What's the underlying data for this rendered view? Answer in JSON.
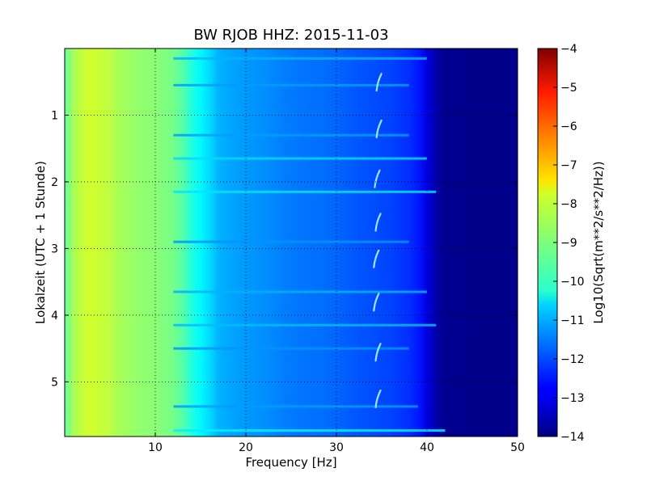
{
  "chart_data": {
    "type": "heatmap",
    "title": "BW RJOB HHZ: 2015-11-03",
    "xlabel": "Frequency [Hz]",
    "ylabel": "Lokalzeit (UTC + 1 Stunde)",
    "xlim": [
      0,
      50
    ],
    "ylim": [
      0,
      5.82
    ],
    "y_inverted": true,
    "grid": true,
    "x_ticks": [
      10,
      20,
      30,
      40,
      50
    ],
    "y_ticks": [
      1,
      2,
      3,
      4,
      5
    ],
    "colormap": "jet",
    "colorbar": {
      "label": "Log10(Sqrt(m**2/s**2/Hz))",
      "range": [
        -14,
        -4
      ],
      "ticks": [
        -4,
        -5,
        -6,
        -7,
        -8,
        -9,
        -10,
        -11,
        -12,
        -13,
        -14
      ]
    },
    "spectrum_profile": {
      "frequency_hz": [
        0,
        1,
        2,
        3,
        4,
        5,
        6,
        8,
        10,
        12,
        13,
        14,
        15,
        16,
        17,
        18,
        20,
        22,
        24,
        26,
        28,
        30,
        32,
        34,
        36,
        38,
        39,
        40,
        41,
        42,
        45,
        50
      ],
      "log10_value": [
        -9.3,
        -8.6,
        -8.3,
        -8.2,
        -8.3,
        -8.4,
        -8.6,
        -8.8,
        -8.9,
        -9.1,
        -9.4,
        -9.9,
        -10.3,
        -10.6,
        -11.0,
        -11.1,
        -11.25,
        -11.35,
        -11.5,
        -11.6,
        -11.65,
        -11.75,
        -11.9,
        -12.0,
        -12.1,
        -12.3,
        -12.5,
        -13.0,
        -13.6,
        -13.85,
        -13.9,
        -13.9
      ]
    },
    "horizontal_bands": [
      {
        "time_h": 0.15,
        "fmax_hz": 40,
        "log10_value": -11.0
      },
      {
        "time_h": 0.55,
        "fmax_hz": 38,
        "log10_value": -11.2
      },
      {
        "time_h": 1.3,
        "fmax_hz": 38,
        "log10_value": -11.2
      },
      {
        "time_h": 1.65,
        "fmax_hz": 40,
        "log10_value": -10.6
      },
      {
        "time_h": 2.15,
        "fmax_hz": 41,
        "log10_value": -10.5
      },
      {
        "time_h": 2.9,
        "fmax_hz": 38,
        "log10_value": -11.3
      },
      {
        "time_h": 3.65,
        "fmax_hz": 40,
        "log10_value": -11.0
      },
      {
        "time_h": 4.15,
        "fmax_hz": 41,
        "log10_value": -10.9
      },
      {
        "time_h": 4.5,
        "fmax_hz": 38,
        "log10_value": -11.3
      },
      {
        "time_h": 5.37,
        "fmax_hz": 39,
        "log10_value": -11.2
      },
      {
        "time_h": 5.73,
        "fmax_hz": 42,
        "log10_value": -10.4
      }
    ],
    "chirp_features": [
      {
        "time_h": 0.5,
        "freq_hz": 34.7
      },
      {
        "time_h": 1.2,
        "freq_hz": 34.7
      },
      {
        "time_h": 1.95,
        "freq_hz": 34.5
      },
      {
        "time_h": 2.6,
        "freq_hz": 34.6
      },
      {
        "time_h": 3.15,
        "freq_hz": 34.4
      },
      {
        "time_h": 3.8,
        "freq_hz": 34.4
      },
      {
        "time_h": 4.55,
        "freq_hz": 34.6
      },
      {
        "time_h": 5.25,
        "freq_hz": 34.6
      }
    ]
  }
}
